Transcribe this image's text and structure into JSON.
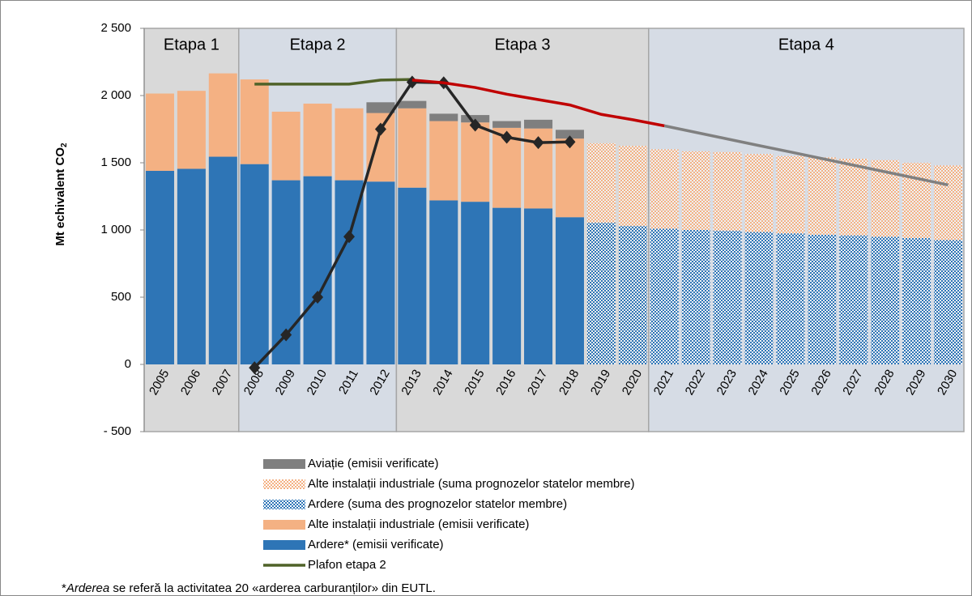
{
  "chart_data": {
    "type": "bar",
    "ylabel": "Mt echivalent CO",
    "ylabel_sub": "2",
    "categories": [
      "2005",
      "2006",
      "2007",
      "2008",
      "2009",
      "2010",
      "2011",
      "2012",
      "2013",
      "2014",
      "2015",
      "2016",
      "2017",
      "2018",
      "2019",
      "2020",
      "2021",
      "2022",
      "2023",
      "2024",
      "2025",
      "2026",
      "2027",
      "2028",
      "2029",
      "2030"
    ],
    "ylim": [
      -500,
      2500
    ],
    "yticks": [
      {
        "value": -500,
        "label": "- 500"
      },
      0,
      500,
      {
        "value": 1000,
        "label": "1 000"
      },
      {
        "value": 1500,
        "label": "1 500"
      },
      {
        "value": 2000,
        "label": "2 000"
      },
      {
        "value": 2500,
        "label": "2 500"
      }
    ],
    "stages": [
      {
        "label": "Etapa 1",
        "categories": [
          "2005",
          "2007"
        ],
        "color": "#d9d9d9"
      },
      {
        "label": "Etapa 2",
        "categories": [
          "2008",
          "2012"
        ],
        "color": "#d6dce5"
      },
      {
        "label": "Etapa 3",
        "categories": [
          "2013",
          "2020"
        ],
        "color": "#d9d9d9"
      },
      {
        "label": "Etapa 4",
        "categories": [
          "2021",
          "2030"
        ],
        "color": "#d6dce5"
      }
    ],
    "series": [
      {
        "name": "Aviație (emisii verificate)",
        "type": "bar",
        "color": "#7f7f7f",
        "values": [
          null,
          null,
          null,
          null,
          null,
          null,
          null,
          80,
          55,
          55,
          55,
          50,
          65,
          65,
          null,
          null,
          null,
          null,
          null,
          null,
          null,
          null,
          null,
          null,
          null,
          null
        ]
      },
      {
        "name": "Alte instalații industriale (suma prognozelor statelor membre)",
        "type": "bar",
        "color": "#f4b183",
        "pattern": true,
        "values": [
          null,
          null,
          null,
          null,
          null,
          null,
          null,
          null,
          null,
          null,
          null,
          null,
          null,
          null,
          590,
          595,
          590,
          585,
          585,
          580,
          575,
          575,
          570,
          570,
          560,
          555
        ]
      },
      {
        "name": "Ardere (suma des prognozelor statelor membre)",
        "type": "bar",
        "color": "#2e75b6",
        "pattern": true,
        "values": [
          null,
          null,
          null,
          null,
          null,
          null,
          null,
          null,
          null,
          null,
          null,
          null,
          null,
          null,
          1055,
          1030,
          1010,
          1000,
          995,
          985,
          975,
          965,
          960,
          950,
          940,
          925
        ]
      },
      {
        "name": "Alte instalații industriale (emisii verificate)",
        "type": "bar",
        "color": "#f4b183",
        "values": [
          575,
          580,
          620,
          630,
          510,
          540,
          535,
          510,
          590,
          590,
          590,
          595,
          595,
          585,
          null,
          null,
          null,
          null,
          null,
          null,
          null,
          null,
          null,
          null,
          null,
          null
        ]
      },
      {
        "name": "Ardere* (emisii verificate)",
        "type": "bar",
        "color": "#2e75b6",
        "values": [
          1440,
          1455,
          1545,
          1490,
          1370,
          1400,
          1370,
          1360,
          1315,
          1220,
          1210,
          1165,
          1160,
          1095,
          null,
          null,
          null,
          null,
          null,
          null,
          null,
          null,
          null,
          null,
          null,
          null
        ]
      },
      {
        "name": "Plafon etapa 2",
        "type": "line",
        "color": "#4f6228",
        "values": [
          null,
          null,
          null,
          2085,
          2085,
          2085,
          2085,
          2115,
          2120,
          null,
          null,
          null,
          null,
          null,
          null,
          null,
          null,
          null,
          null,
          null,
          null,
          null,
          null,
          null,
          null,
          null
        ]
      },
      {
        "type": "line",
        "color": "#262626",
        "marker": "diamond",
        "values": [
          null,
          null,
          null,
          -25,
          220,
          500,
          950,
          1750,
          2100,
          2095,
          1780,
          1690,
          1650,
          1655,
          null,
          null,
          null,
          null,
          null,
          null,
          null,
          null,
          null,
          null,
          null,
          null
        ]
      },
      {
        "type": "line",
        "color": "#c00000",
        "values": [
          null,
          null,
          null,
          null,
          null,
          null,
          null,
          null,
          2115,
          2095,
          2060,
          2010,
          1970,
          1930,
          1860,
          1820,
          1775,
          null,
          null,
          null,
          null,
          null,
          null,
          null,
          null,
          null
        ]
      },
      {
        "type": "line",
        "color": "#808080",
        "values": [
          null,
          null,
          null,
          null,
          null,
          null,
          null,
          null,
          null,
          null,
          null,
          null,
          null,
          null,
          null,
          null,
          1775,
          1726,
          1677,
          1628,
          1580,
          1531,
          1482,
          1433,
          1384,
          1335
        ]
      }
    ],
    "footnote": {
      "prefix": "*",
      "emphasis": "Arderea",
      "text": " se referă la activitatea 20 «arderea carburanților» din EUTL."
    }
  }
}
